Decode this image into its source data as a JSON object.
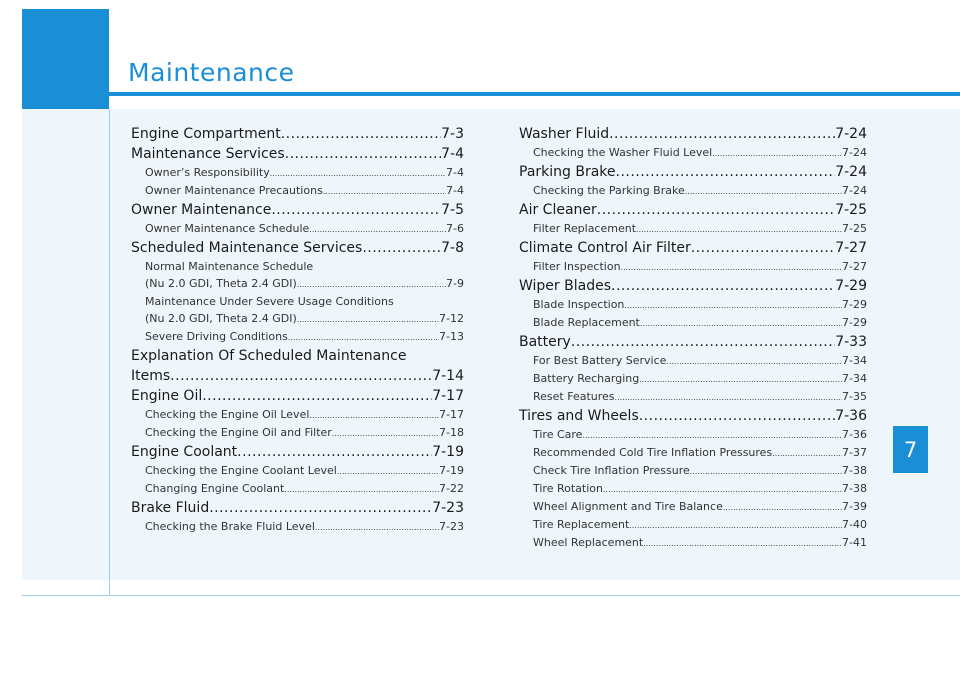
{
  "header": {
    "title": "Maintenance",
    "chapter": "7"
  },
  "colors": {
    "accent": "#1b8fd6",
    "panel": "#eef6fb"
  },
  "toc": {
    "left": [
      {
        "type": "main",
        "text": "Engine Compartment ",
        "page": "7-3"
      },
      {
        "type": "main",
        "text": "Maintenance Services ",
        "page": "7-4"
      },
      {
        "type": "sub",
        "text": "Owner’s Responsibility ",
        "page": "7-4"
      },
      {
        "type": "sub",
        "text": "Owner Maintenance Precautions ",
        "page": "7-4"
      },
      {
        "type": "main",
        "text": "Owner Maintenance ",
        "page": "7-5"
      },
      {
        "type": "sub",
        "text": "Owner Maintenance Schedule ",
        "page": "7-6"
      },
      {
        "type": "main",
        "text": "Scheduled Maintenance Services ",
        "page": "7-8"
      },
      {
        "type": "sub-plain",
        "text": "Normal Maintenance Schedule"
      },
      {
        "type": "sub",
        "text": "(Nu 2.0 GDI, Theta 2.4 GDI) ",
        "page": "7-9"
      },
      {
        "type": "sub-plain",
        "text": "Maintenance Under Severe Usage Conditions"
      },
      {
        "type": "sub",
        "text": "(Nu 2.0 GDI, Theta 2.4 GDI) ",
        "page": "7-12"
      },
      {
        "type": "sub",
        "text": "Severe Driving Conditions ",
        "page": "7-13"
      },
      {
        "type": "main-plain",
        "text": "Explanation Of Scheduled Maintenance"
      },
      {
        "type": "main",
        "text": "Items ",
        "page": "7-14"
      },
      {
        "type": "main",
        "text": "Engine Oil ",
        "page": "7-17"
      },
      {
        "type": "sub",
        "text": "Checking the Engine Oil Level ",
        "page": "7-17"
      },
      {
        "type": "sub",
        "text": "Checking the Engine Oil and Filter ",
        "page": "7-18"
      },
      {
        "type": "main",
        "text": "Engine Coolant ",
        "page": "7-19"
      },
      {
        "type": "sub",
        "text": "Checking the Engine Coolant Level ",
        "page": "7-19"
      },
      {
        "type": "sub",
        "text": "Changing Engine Coolant ",
        "page": "7-22"
      },
      {
        "type": "main",
        "text": "Brake Fluid ",
        "page": "7-23"
      },
      {
        "type": "sub",
        "text": "Checking the Brake Fluid Level ",
        "page": "7-23"
      }
    ],
    "right": [
      {
        "type": "main",
        "text": "Washer Fluid ",
        "page": "7-24"
      },
      {
        "type": "sub",
        "text": "Checking the Washer Fluid Level",
        "page": "7-24"
      },
      {
        "type": "main",
        "text": "Parking Brake ",
        "page": "7-24"
      },
      {
        "type": "sub",
        "text": "Checking the Parking Brake ",
        "page": "7-24"
      },
      {
        "type": "main",
        "text": "Air Cleaner ",
        "page": "7-25"
      },
      {
        "type": "sub",
        "text": "Filter Replacement ",
        "page": "7-25"
      },
      {
        "type": "main",
        "text": "Climate Control Air Filter ",
        "page": "7-27"
      },
      {
        "type": "sub",
        "text": "Filter Inspection ",
        "page": "7-27"
      },
      {
        "type": "main",
        "text": "Wiper Blades",
        "page": "7-29"
      },
      {
        "type": "sub",
        "text": "Blade Inspection ",
        "page": "7-29"
      },
      {
        "type": "sub",
        "text": "Blade Replacement ",
        "page": "7-29"
      },
      {
        "type": "main",
        "text": "Battery",
        "page": "7-33"
      },
      {
        "type": "sub",
        "text": "For Best Battery Service ",
        "page": "7-34"
      },
      {
        "type": "sub",
        "text": "Battery Recharging ",
        "page": "7-34"
      },
      {
        "type": "sub",
        "text": "Reset Features",
        "page": "7-35"
      },
      {
        "type": "main",
        "text": "Tires and Wheels ",
        "page": "7-36"
      },
      {
        "type": "sub",
        "text": "Tire Care",
        "page": "7-36"
      },
      {
        "type": "sub",
        "text": "Recommended Cold Tire Inflation Pressures ",
        "page": "7-37"
      },
      {
        "type": "sub",
        "text": "Check Tire Inflation Pressure ",
        "page": "7-38"
      },
      {
        "type": "sub",
        "text": "Tire Rotation",
        "page": "7-38"
      },
      {
        "type": "sub",
        "text": "Wheel Alignment and Tire Balance ",
        "page": "7-39"
      },
      {
        "type": "sub",
        "text": "Tire Replacement ",
        "page": "7-40"
      },
      {
        "type": "sub",
        "text": "Wheel Replacement ",
        "page": "7-41"
      }
    ]
  }
}
